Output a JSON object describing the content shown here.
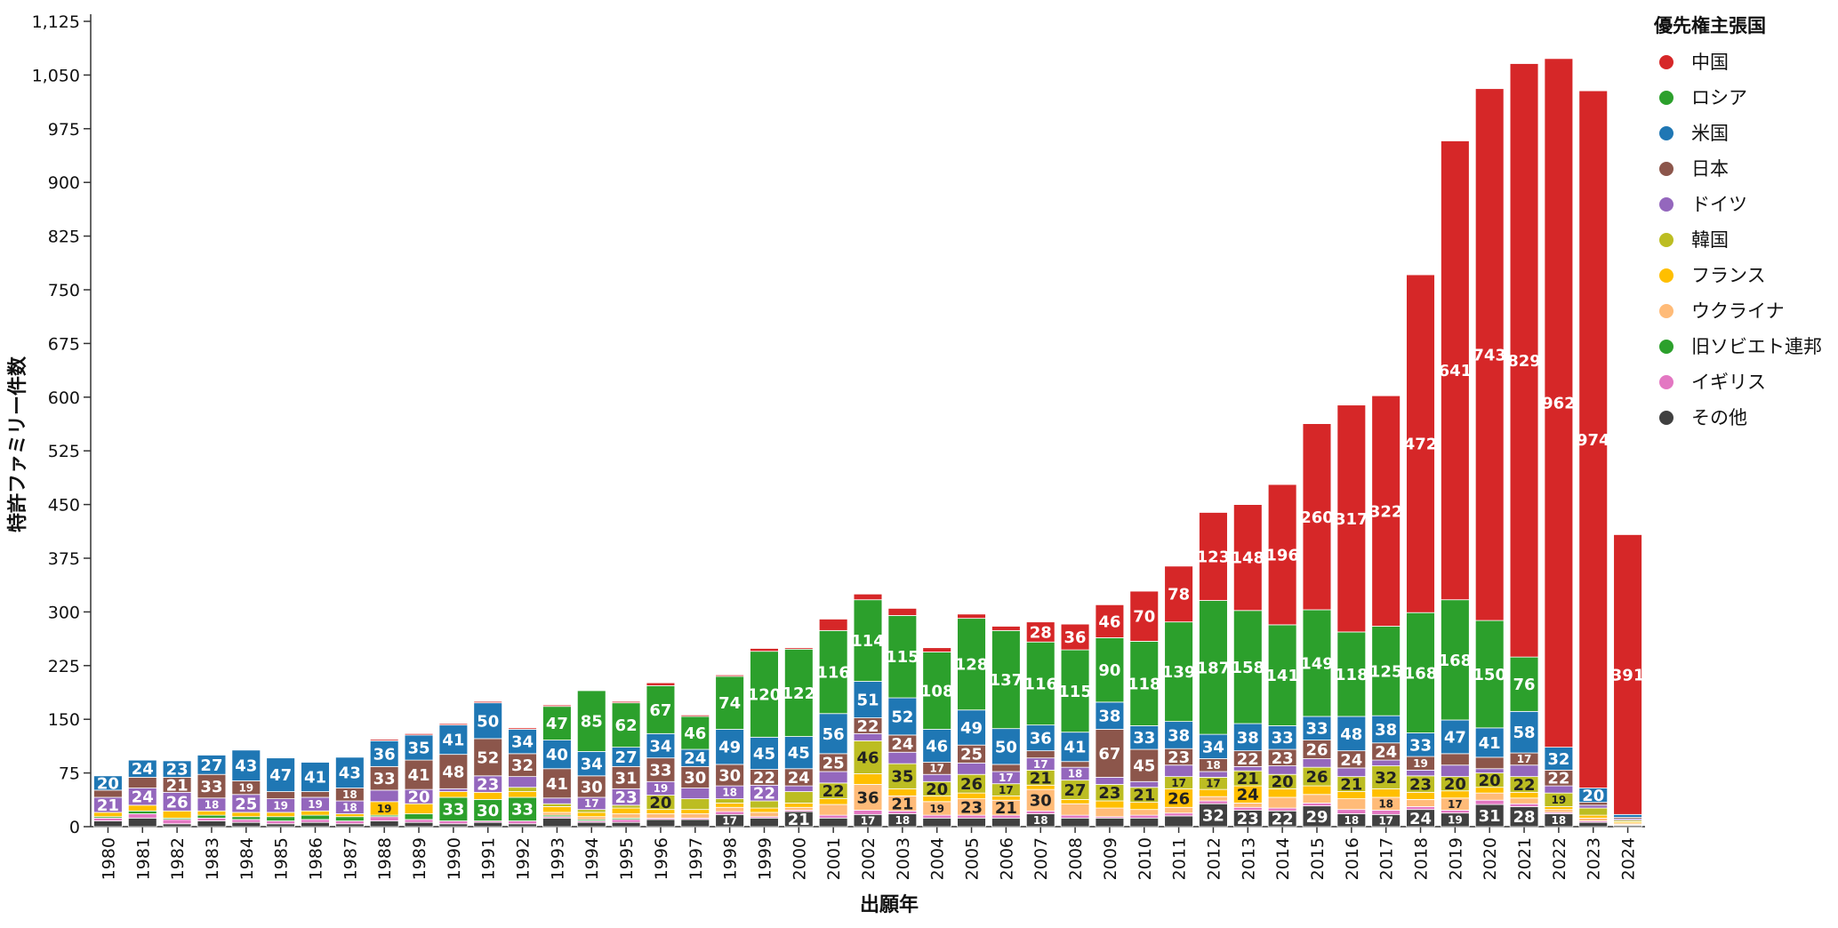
{
  "chart_data": {
    "type": "bar",
    "stacked": true,
    "xlabel": "出願年",
    "ylabel": "特許ファミリー件数",
    "ylim": [
      0,
      1125
    ],
    "yticks": [
      0,
      75,
      150,
      225,
      300,
      375,
      450,
      525,
      600,
      675,
      750,
      825,
      900,
      975,
      1050,
      1125
    ],
    "ytick_labels": [
      "0",
      "75",
      "150",
      "225",
      "300",
      "375",
      "450",
      "525",
      "600",
      "675",
      "750",
      "825",
      "900",
      "975",
      "1,050",
      "1,125"
    ],
    "grid": false,
    "legend": {
      "title": "優先権主張国",
      "position": "right"
    },
    "categories": [
      "1980",
      "1981",
      "1982",
      "1983",
      "1984",
      "1985",
      "1986",
      "1987",
      "1988",
      "1989",
      "1990",
      "1991",
      "1992",
      "1993",
      "1994",
      "1995",
      "1996",
      "1997",
      "1998",
      "1999",
      "2000",
      "2001",
      "2002",
      "2003",
      "2004",
      "2005",
      "2006",
      "2007",
      "2008",
      "2009",
      "2010",
      "2011",
      "2012",
      "2013",
      "2014",
      "2015",
      "2016",
      "2017",
      "2018",
      "2019",
      "2020",
      "2021",
      "2022",
      "2023",
      "2024"
    ],
    "series": [
      {
        "name": "その他",
        "color": "#404040",
        "values": [
          8,
          12,
          4,
          8,
          6,
          4,
          6,
          4,
          8,
          6,
          4,
          6,
          4,
          12,
          6,
          6,
          10,
          10,
          17,
          12,
          21,
          12,
          17,
          18,
          12,
          12,
          12,
          18,
          12,
          12,
          12,
          15,
          32,
          23,
          22,
          29,
          18,
          17,
          24,
          19,
          31,
          28,
          18,
          6,
          2
        ]
      },
      {
        "name": "イギリス",
        "color": "#e377c2",
        "values": [
          4,
          6,
          6,
          4,
          4,
          4,
          4,
          4,
          6,
          4,
          4,
          2,
          4,
          2,
          2,
          4,
          2,
          2,
          4,
          2,
          2,
          4,
          6,
          4,
          4,
          4,
          4,
          4,
          4,
          2,
          4,
          4,
          4,
          4,
          4,
          4,
          6,
          6,
          4,
          4,
          6,
          4,
          2,
          2,
          1
        ]
      },
      {
        "name": "旧ソビエト連邦",
        "color": "#2ca02c",
        "values": [
          2,
          4,
          2,
          4,
          4,
          6,
          6,
          6,
          2,
          8,
          33,
          30,
          33,
          2,
          2,
          2,
          0,
          0,
          0,
          0,
          0,
          0,
          0,
          0,
          0,
          0,
          0,
          0,
          0,
          0,
          0,
          0,
          0,
          0,
          0,
          0,
          0,
          0,
          0,
          0,
          0,
          0,
          0,
          0,
          0
        ]
      },
      {
        "name": "ウクライナ",
        "color": "#ffbb78",
        "values": [
          0,
          0,
          0,
          0,
          0,
          0,
          0,
          0,
          0,
          0,
          0,
          0,
          0,
          4,
          4,
          6,
          6,
          6,
          6,
          6,
          4,
          15,
          36,
          21,
          19,
          23,
          21,
          30,
          16,
          12,
          8,
          8,
          6,
          6,
          15,
          12,
          15,
          18,
          10,
          17,
          10,
          8,
          4,
          4,
          2
        ]
      },
      {
        "name": "フランス",
        "color": "#ffbf00",
        "values": [
          6,
          8,
          10,
          6,
          6,
          6,
          6,
          4,
          19,
          14,
          8,
          10,
          8,
          8,
          6,
          8,
          6,
          6,
          6,
          6,
          6,
          8,
          15,
          10,
          8,
          8,
          6,
          6,
          6,
          10,
          10,
          26,
          10,
          24,
          12,
          12,
          10,
          12,
          10,
          10,
          8,
          8,
          4,
          4,
          2
        ]
      },
      {
        "name": "韓国",
        "color": "#bcbd22",
        "values": [
          0,
          0,
          0,
          0,
          0,
          0,
          0,
          0,
          0,
          0,
          0,
          0,
          6,
          4,
          4,
          4,
          20,
          15,
          6,
          10,
          16,
          22,
          46,
          35,
          20,
          26,
          17,
          21,
          27,
          23,
          21,
          17,
          17,
          21,
          20,
          26,
          21,
          32,
          23,
          20,
          20,
          22,
          19,
          10,
          2
        ]
      },
      {
        "name": "ドイツ",
        "color": "#9467bd",
        "values": [
          21,
          24,
          26,
          18,
          25,
          19,
          19,
          18,
          16,
          20,
          4,
          23,
          15,
          8,
          17,
          23,
          19,
          15,
          18,
          22,
          8,
          16,
          10,
          16,
          10,
          16,
          17,
          17,
          18,
          10,
          8,
          16,
          8,
          6,
          12,
          12,
          12,
          8,
          8,
          16,
          6,
          16,
          10,
          4,
          2
        ]
      },
      {
        "name": "日本",
        "color": "#8c564b",
        "values": [
          10,
          15,
          21,
          33,
          19,
          10,
          8,
          18,
          33,
          41,
          48,
          52,
          32,
          41,
          30,
          31,
          33,
          30,
          30,
          22,
          24,
          25,
          22,
          24,
          17,
          25,
          10,
          10,
          8,
          67,
          45,
          23,
          18,
          22,
          23,
          26,
          24,
          24,
          19,
          16,
          16,
          17,
          22,
          4,
          2
        ]
      },
      {
        "name": "米国",
        "color": "#1f77b4",
        "values": [
          20,
          24,
          23,
          27,
          43,
          47,
          41,
          43,
          36,
          35,
          41,
          50,
          34,
          40,
          34,
          27,
          34,
          24,
          49,
          45,
          45,
          56,
          51,
          52,
          46,
          49,
          50,
          36,
          41,
          38,
          33,
          38,
          34,
          38,
          33,
          33,
          48,
          38,
          33,
          47,
          41,
          58,
          32,
          20,
          4
        ]
      },
      {
        "name": "ロシア",
        "color": "#2ca02c",
        "values": [
          0,
          0,
          0,
          0,
          0,
          0,
          0,
          0,
          0,
          0,
          0,
          0,
          0,
          47,
          85,
          62,
          67,
          46,
          74,
          120,
          122,
          116,
          114,
          115,
          108,
          128,
          137,
          116,
          115,
          90,
          118,
          139,
          187,
          158,
          141,
          149,
          118,
          125,
          168,
          168,
          150,
          76,
          0,
          0,
          0
        ]
      },
      {
        "name": "中国",
        "color": "#d62728",
        "values": [
          0,
          0,
          0,
          0,
          0,
          0,
          0,
          0,
          2,
          2,
          2,
          2,
          2,
          2,
          0,
          2,
          4,
          2,
          2,
          4,
          2,
          16,
          8,
          10,
          6,
          6,
          6,
          28,
          36,
          46,
          70,
          78,
          123,
          148,
          196,
          260,
          317,
          322,
          472,
          641,
          743,
          829,
          962,
          974,
          391
        ]
      }
    ]
  }
}
